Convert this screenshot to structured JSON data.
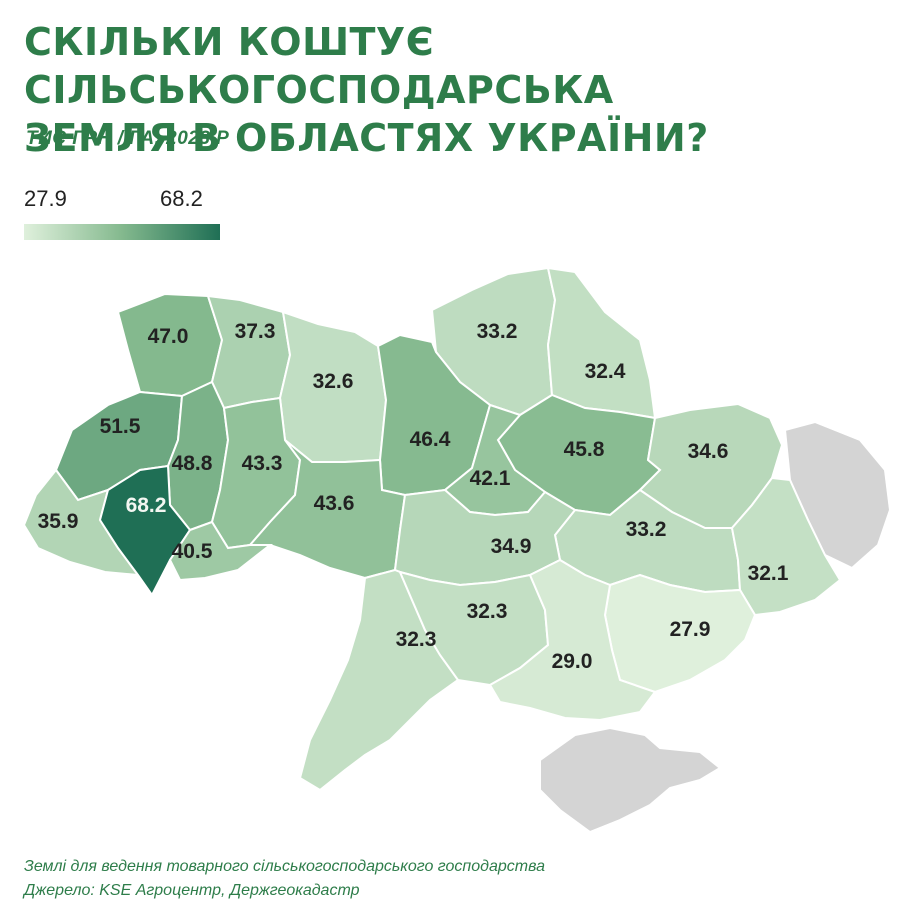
{
  "title": {
    "line1": "СКІЛЬКИ КОШТУЄ СІЛЬСЬКОГОСПОДАРСЬКА",
    "line2": "ЗЕМЛЯ В ОБЛАСТЯХ УКРАЇНИ?"
  },
  "subtitle": "ТИС ГРН / ГА, 2023 Р",
  "legend": {
    "min": "27.9",
    "max": "68.2",
    "min_color": "#dff0dc",
    "max_color": "#1f6f55"
  },
  "colors": {
    "no_data": "#d4d4d4",
    "accent": "#2e7d4a"
  },
  "regions": [
    {
      "value": "47.0"
    },
    {
      "value": "37.3"
    },
    {
      "value": "32.6"
    },
    {
      "value": "33.2"
    },
    {
      "value": "32.4"
    },
    {
      "value": "51.5"
    },
    {
      "value": "46.4"
    },
    {
      "value": "45.8"
    },
    {
      "value": "48.8"
    },
    {
      "value": "43.3"
    },
    {
      "value": "34.6"
    },
    {
      "value": "42.1"
    },
    {
      "value": "35.9"
    },
    {
      "value": "68.2"
    },
    {
      "value": "43.6"
    },
    {
      "value": "33.2"
    },
    {
      "value": "40.5"
    },
    {
      "value": "34.9"
    },
    {
      "value": "32.1"
    },
    {
      "value": "32.3"
    },
    {
      "value": "27.9"
    },
    {
      "value": "32.3"
    },
    {
      "value": "29.0"
    }
  ],
  "footnote": {
    "line1": "Землі для ведення товарного сільськогосподарського господарства",
    "line2": "Джерело: KSE Агроцентр, Держгеокадастр"
  }
}
